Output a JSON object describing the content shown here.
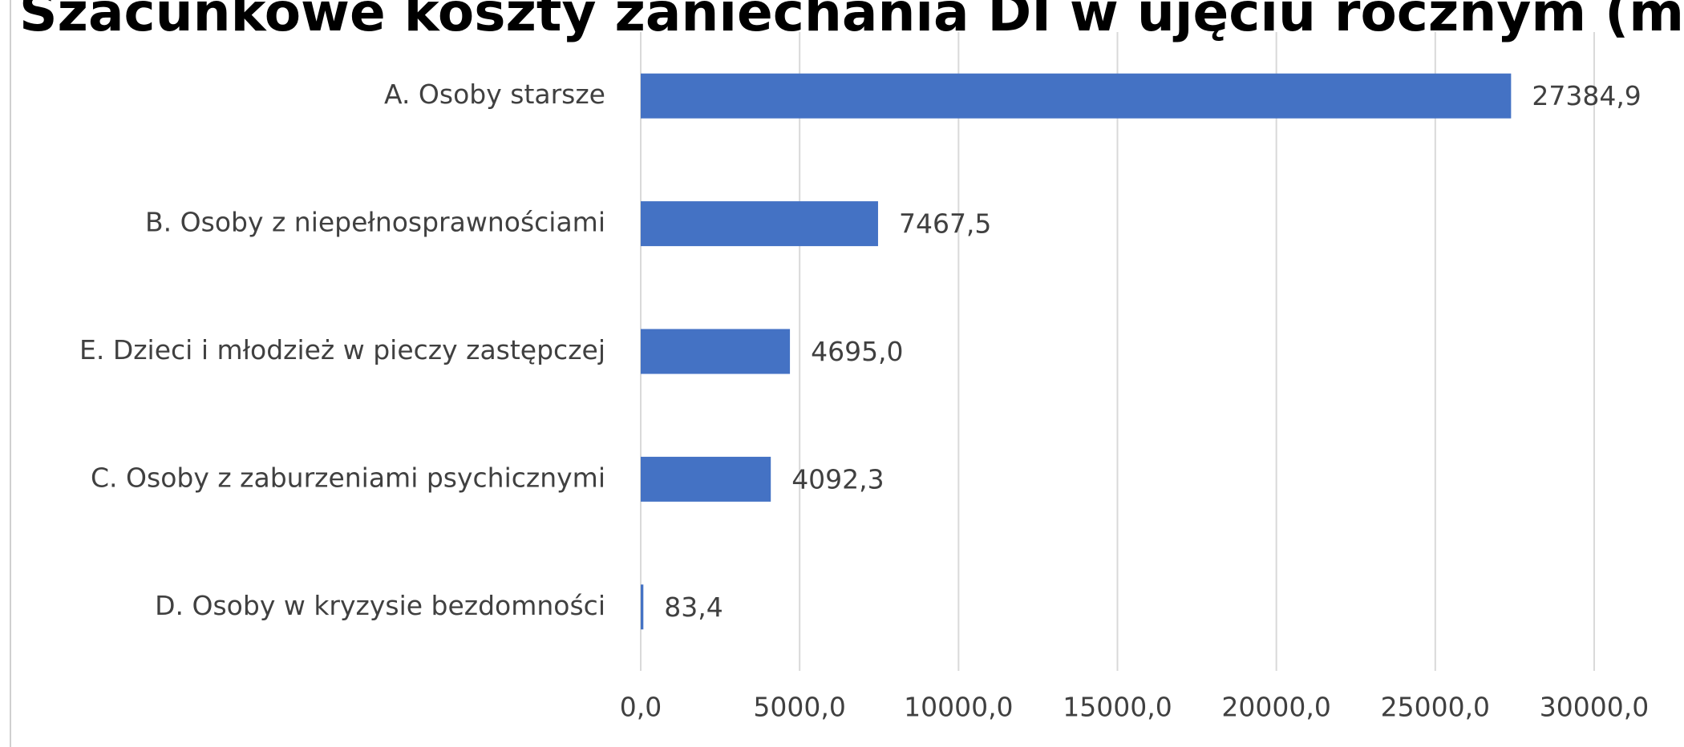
{
  "chart_data": {
    "type": "bar",
    "orientation": "horizontal",
    "title": "Szacunkowe koszty zaniechania DI w ujęciu rocznym (mln",
    "categories": [
      "A. Osoby starsze",
      "B. Osoby z niepełnosprawnościami",
      "E. Dzieci i młodzież w pieczy zastępczej",
      "C. Osoby z zaburzeniami psychicznymi",
      "D. Osoby w kryzysie bezdomności"
    ],
    "values": [
      27384.9,
      7467.5,
      4695.0,
      4092.3,
      83.4
    ],
    "value_labels": [
      "27384,9",
      "7467,5",
      "4695,0",
      "4092,3",
      "83,4"
    ],
    "color": "#4472c4",
    "xlim": [
      0,
      30000
    ],
    "xticks": [
      {
        "value": 0,
        "label": "0,0"
      },
      {
        "value": 5000,
        "label": "5000,0"
      },
      {
        "value": 10000,
        "label": "10000,0"
      },
      {
        "value": 15000,
        "label": "15000,0"
      },
      {
        "value": 20000,
        "label": "20000,0"
      },
      {
        "value": 25000,
        "label": "25000,0"
      },
      {
        "value": 30000,
        "label": "30000,0"
      }
    ],
    "grid": true
  }
}
